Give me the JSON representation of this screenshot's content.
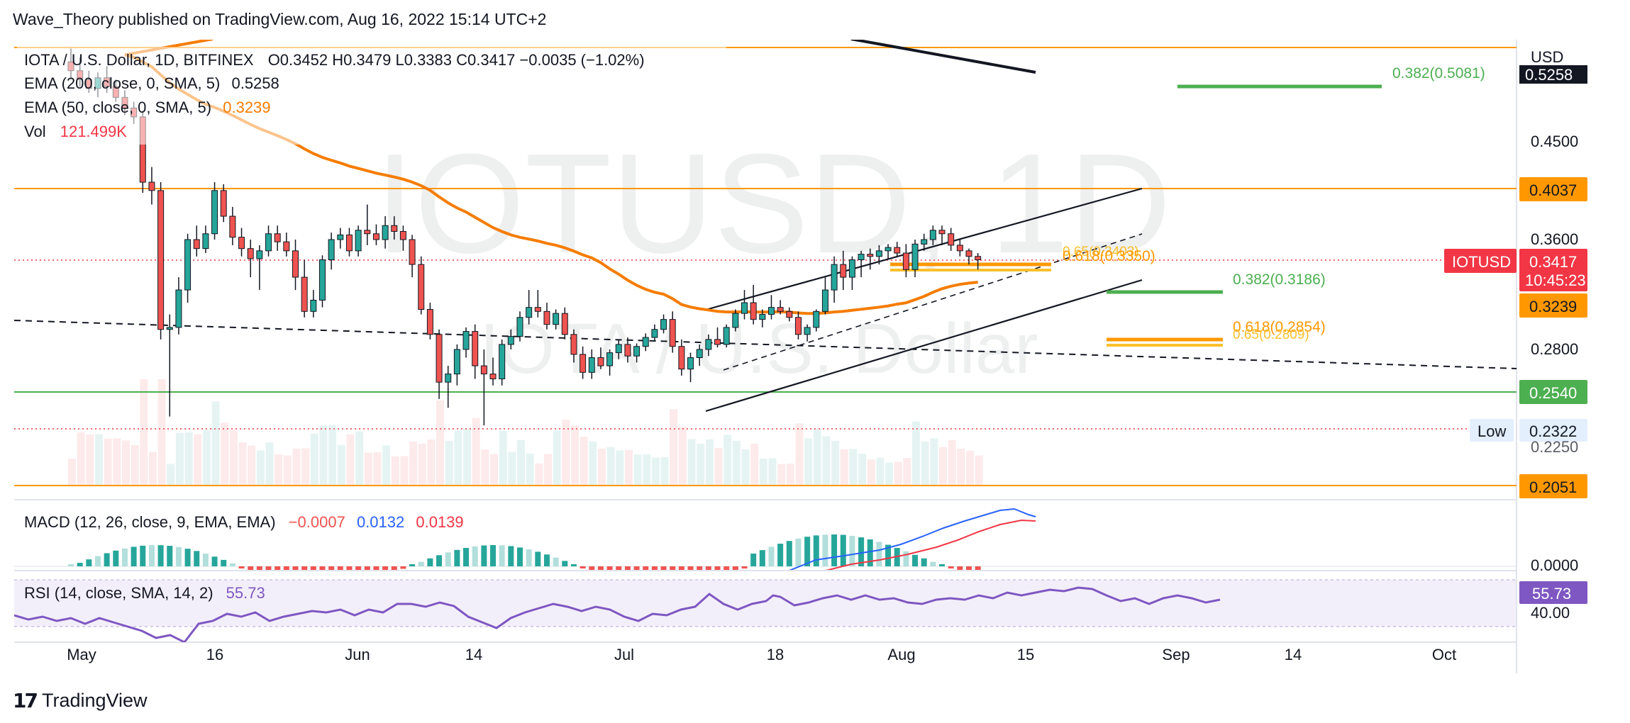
{
  "header": {
    "published": "Wave_Theory published on TradingView.com, Aug 16, 2022 15:14 UTC+2"
  },
  "footer": {
    "logo_mark": "17",
    "logo_text": "TradingView"
  },
  "legend": {
    "symbol_line": "IOTA / U.S. Dollar, 1D, BITFINEX",
    "ohlc_line": "O0.3452  H0.3479  L0.3383  C0.3417  −0.0035 (−1.02%)",
    "ema200_label": "EMA (200, close, 0, SMA, 5)",
    "ema200_value": "0.5258",
    "ema50_label": "EMA (50, close, 0, SMA, 5)",
    "ema50_value": "0.3239",
    "vol_label": "Vol",
    "vol_value": "121.499K"
  },
  "watermark": {
    "ticker": "IOTUSD, 1D",
    "name": "IOTA / U.S. Dollar"
  },
  "price_axis": {
    "currency": "USD",
    "ticks": [
      "0.4500",
      "0.3600",
      "0.2800",
      "0.2250"
    ],
    "badges": [
      {
        "value": "0.5258",
        "color": "#131722"
      },
      {
        "value": "0.4037",
        "color": "#ff9800"
      },
      {
        "value": "0.3417",
        "color": "#f23645"
      },
      {
        "value": "10:45:23",
        "color": "#f23645"
      },
      {
        "value": "0.3239",
        "color": "#ff9800"
      },
      {
        "value": "0.2540",
        "color": "#4caf50"
      },
      {
        "value": "0.2322",
        "color": "#e3effd"
      },
      {
        "value": "0.2051",
        "color": "#ff9800"
      }
    ],
    "symbol_tag": "IOTUSD",
    "low_tag": "Low"
  },
  "time_axis": {
    "labels": [
      "May",
      "16",
      "Jun",
      "14",
      "Jul",
      "18",
      "Aug",
      "15",
      "Sep",
      "14",
      "Oct"
    ]
  },
  "annotations": {
    "fib_382_high": "0.382(0.5081)",
    "fib_382_mid": "0.382(0.3186)",
    "fib_618_low": "0.618(0.2854)",
    "fib_65_low": "0.65(0.2809)",
    "fib_618_high": "0.618(0.3350)",
    "fib_65_high": "0.65(0.3403)"
  },
  "macd": {
    "label": "MACD (12, 26, close, 9, EMA, EMA)",
    "v1": "−0.0007",
    "v2": "0.0132",
    "v3": "0.0139",
    "axis_tick": "0.0000"
  },
  "rsi": {
    "label": "RSI (14, close, SMA, 14, 2)",
    "value": "55.73",
    "axis_tick": "40.00",
    "badge": "55.73"
  },
  "colors": {
    "up": "#26a69a",
    "down": "#ef5350",
    "ema50": "#f57c00",
    "ema200": "#131722",
    "horizontal_orange": "#ff9800",
    "support_green": "#4caf50",
    "macd_line": "#2962ff",
    "signal_line": "#f23645",
    "rsi_line": "#7e57c2"
  },
  "chart_data": {
    "type": "candlestick",
    "symbol": "IOTUSD",
    "timeframe": "1D",
    "exchange": "BITFINEX",
    "ylim": [
      0.2051,
      0.5258
    ],
    "last": {
      "open": 0.3452,
      "high": 0.3479,
      "low": 0.3383,
      "close": 0.3417,
      "change": -0.0035,
      "change_pct": -1.02
    },
    "candles": [
      [
        0.54,
        0.555,
        0.52,
        0.53
      ],
      [
        0.53,
        0.545,
        0.512,
        0.52
      ],
      [
        0.52,
        0.53,
        0.505,
        0.51
      ],
      [
        0.51,
        0.528,
        0.5,
        0.522
      ],
      [
        0.522,
        0.535,
        0.505,
        0.512
      ],
      [
        0.512,
        0.52,
        0.495,
        0.5
      ],
      [
        0.5,
        0.508,
        0.48,
        0.488
      ],
      [
        0.488,
        0.495,
        0.47,
        0.478
      ],
      [
        0.478,
        0.485,
        0.4,
        0.41
      ],
      [
        0.41,
        0.425,
        0.39,
        0.402
      ],
      [
        0.402,
        0.41,
        0.29,
        0.3
      ],
      [
        0.3,
        0.315,
        0.24,
        0.302
      ],
      [
        0.302,
        0.335,
        0.295,
        0.33
      ],
      [
        0.33,
        0.365,
        0.325,
        0.36
      ],
      [
        0.36,
        0.372,
        0.345,
        0.352
      ],
      [
        0.352,
        0.372,
        0.348,
        0.365
      ],
      [
        0.365,
        0.41,
        0.36,
        0.402
      ],
      [
        0.402,
        0.408,
        0.375,
        0.38
      ],
      [
        0.38,
        0.388,
        0.355,
        0.362
      ],
      [
        0.362,
        0.37,
        0.345,
        0.352
      ],
      [
        0.352,
        0.36,
        0.335,
        0.343
      ],
      [
        0.343,
        0.355,
        0.33,
        0.35
      ],
      [
        0.35,
        0.372,
        0.345,
        0.365
      ],
      [
        0.365,
        0.372,
        0.35,
        0.358
      ],
      [
        0.358,
        0.366,
        0.345,
        0.35
      ],
      [
        0.35,
        0.36,
        0.33,
        0.335
      ],
      [
        0.335,
        0.342,
        0.312,
        0.318
      ],
      [
        0.318,
        0.33,
        0.312,
        0.326
      ],
      [
        0.326,
        0.346,
        0.322,
        0.342
      ],
      [
        0.342,
        0.366,
        0.338,
        0.36
      ],
      [
        0.36,
        0.37,
        0.352,
        0.364
      ],
      [
        0.364,
        0.37,
        0.345,
        0.35
      ],
      [
        0.35,
        0.372,
        0.345,
        0.368
      ],
      [
        0.368,
        0.39,
        0.355,
        0.365
      ],
      [
        0.365,
        0.373,
        0.355,
        0.36
      ],
      [
        0.36,
        0.38,
        0.352,
        0.372
      ],
      [
        0.372,
        0.38,
        0.36,
        0.367
      ],
      [
        0.367,
        0.372,
        0.35,
        0.36
      ],
      [
        0.36,
        0.364,
        0.335,
        0.34
      ],
      [
        0.34,
        0.345,
        0.315,
        0.32
      ],
      [
        0.32,
        0.325,
        0.29,
        0.295
      ],
      [
        0.295,
        0.3,
        0.25,
        0.26
      ],
      [
        0.26,
        0.27,
        0.245,
        0.265
      ],
      [
        0.265,
        0.285,
        0.258,
        0.28
      ],
      [
        0.28,
        0.302,
        0.275,
        0.298
      ],
      [
        0.298,
        0.305,
        0.262,
        0.27
      ],
      [
        0.27,
        0.28,
        0.235,
        0.265
      ],
      [
        0.265,
        0.275,
        0.258,
        0.262
      ],
      [
        0.262,
        0.29,
        0.258,
        0.285
      ],
      [
        0.285,
        0.3,
        0.28,
        0.293
      ],
      [
        0.293,
        0.318,
        0.288,
        0.312
      ],
      [
        0.312,
        0.33,
        0.305,
        0.322
      ],
      [
        0.322,
        0.33,
        0.312,
        0.318
      ],
      [
        0.318,
        0.325,
        0.3,
        0.305
      ],
      [
        0.305,
        0.32,
        0.3,
        0.316
      ],
      [
        0.316,
        0.322,
        0.29,
        0.295
      ],
      [
        0.295,
        0.3,
        0.272,
        0.277
      ],
      [
        0.277,
        0.283,
        0.262,
        0.266
      ],
      [
        0.266,
        0.28,
        0.262,
        0.275
      ],
      [
        0.275,
        0.282,
        0.268,
        0.27
      ],
      [
        0.27,
        0.28,
        0.264,
        0.278
      ],
      [
        0.278,
        0.29,
        0.274,
        0.285
      ],
      [
        0.285,
        0.292,
        0.272,
        0.276
      ],
      [
        0.276,
        0.286,
        0.272,
        0.283
      ],
      [
        0.283,
        0.296,
        0.279,
        0.292
      ],
      [
        0.292,
        0.305,
        0.288,
        0.3
      ],
      [
        0.3,
        0.315,
        0.296,
        0.31
      ],
      [
        0.31,
        0.318,
        0.278,
        0.283
      ],
      [
        0.283,
        0.29,
        0.264,
        0.268
      ],
      [
        0.268,
        0.278,
        0.26,
        0.275
      ],
      [
        0.275,
        0.285,
        0.27,
        0.28
      ],
      [
        0.28,
        0.295,
        0.276,
        0.29
      ],
      [
        0.29,
        0.302,
        0.282,
        0.285
      ],
      [
        0.285,
        0.305,
        0.282,
        0.302
      ],
      [
        0.302,
        0.32,
        0.298,
        0.316
      ],
      [
        0.316,
        0.33,
        0.31,
        0.325
      ],
      [
        0.325,
        0.332,
        0.305,
        0.31
      ],
      [
        0.31,
        0.32,
        0.302,
        0.315
      ],
      [
        0.315,
        0.328,
        0.31,
        0.322
      ],
      [
        0.322,
        0.326,
        0.315,
        0.318
      ],
      [
        0.318,
        0.322,
        0.308,
        0.312
      ],
      [
        0.312,
        0.318,
        0.29,
        0.295
      ],
      [
        0.295,
        0.305,
        0.288,
        0.302
      ],
      [
        0.302,
        0.32,
        0.298,
        0.318
      ],
      [
        0.318,
        0.335,
        0.315,
        0.33
      ],
      [
        0.33,
        0.345,
        0.325,
        0.34
      ],
      [
        0.34,
        0.35,
        0.33,
        0.335
      ],
      [
        0.335,
        0.345,
        0.33,
        0.342
      ],
      [
        0.342,
        0.35,
        0.335,
        0.347
      ],
      [
        0.347,
        0.352,
        0.338,
        0.345
      ],
      [
        0.345,
        0.355,
        0.34,
        0.35
      ],
      [
        0.35,
        0.356,
        0.343,
        0.353
      ],
      [
        0.353,
        0.358,
        0.345,
        0.348
      ],
      [
        0.348,
        0.356,
        0.335,
        0.338
      ],
      [
        0.338,
        0.36,
        0.335,
        0.356
      ],
      [
        0.356,
        0.365,
        0.35,
        0.36
      ],
      [
        0.36,
        0.372,
        0.355,
        0.368
      ],
      [
        0.368,
        0.372,
        0.355,
        0.365
      ],
      [
        0.365,
        0.37,
        0.35,
        0.355
      ],
      [
        0.355,
        0.36,
        0.345,
        0.35
      ],
      [
        0.35,
        0.352,
        0.34,
        0.345
      ],
      [
        0.345,
        0.348,
        0.338,
        0.342
      ]
    ],
    "indicators": {
      "ema200_last": 0.5258,
      "ema50_last": 0.3239,
      "volume_last": "121.499K",
      "macd": {
        "macd": -0.0007,
        "signal": 0.0132,
        "hist": 0.0139
      },
      "rsi": 55.73
    },
    "levels": [
      0.4037,
      0.254,
      0.2322,
      0.2051
    ]
  }
}
